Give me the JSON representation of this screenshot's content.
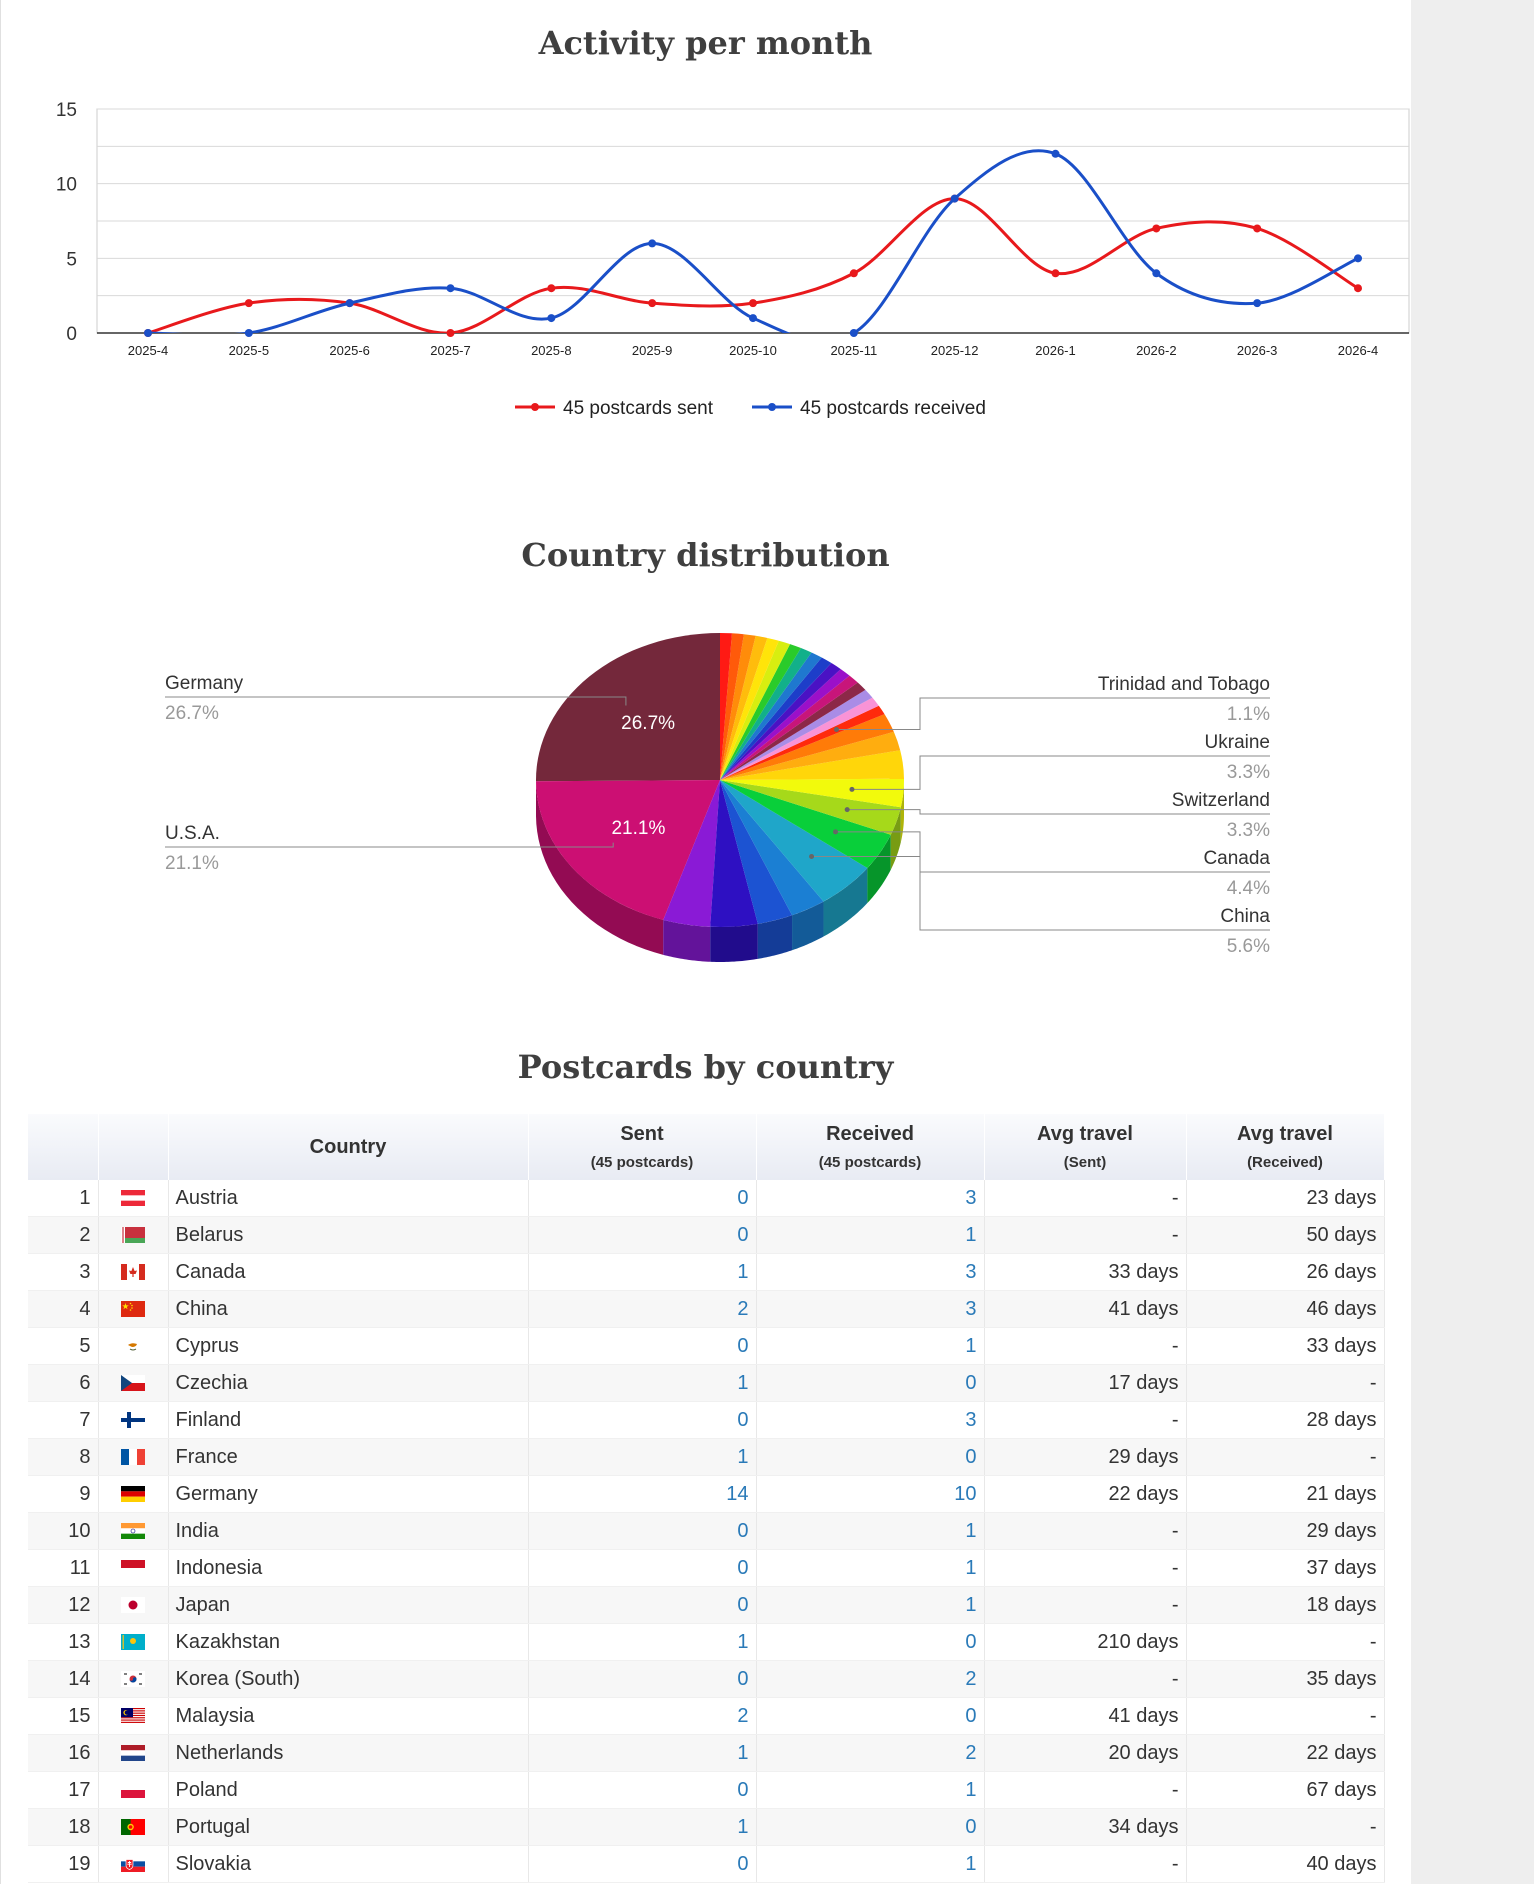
{
  "colors": {
    "sent": "#e8191c",
    "received": "#1a4fc8",
    "link": "#2a7ab8"
  },
  "sections": {
    "activity_title": "Activity per month",
    "country_title": "Country distribution",
    "table_title": "Postcards by country"
  },
  "chart_data": [
    {
      "type": "line",
      "title": "Activity per month",
      "x": [
        "2025-4",
        "2025-5",
        "2025-6",
        "2025-7",
        "2025-8",
        "2025-9",
        "2025-10",
        "2025-11",
        "2025-12",
        "2026-1",
        "2026-2",
        "2026-3",
        "2026-4"
      ],
      "ylim": [
        0,
        15
      ],
      "yticks": [
        0,
        5,
        10,
        15
      ],
      "grid": true,
      "legend": "bottom",
      "series": [
        {
          "name": "45 postcards sent",
          "color": "#e8191c",
          "values": [
            0,
            2,
            2,
            0,
            3,
            2,
            2,
            4,
            9,
            4,
            7,
            7,
            3
          ]
        },
        {
          "name": "45 postcards received",
          "color": "#1a4fc8",
          "values": [
            0,
            0,
            2,
            3,
            1,
            6,
            1,
            0,
            9,
            12,
            4,
            2,
            5
          ]
        }
      ]
    },
    {
      "type": "pie",
      "title": "Country distribution",
      "slices": [
        {
          "label": "Germany",
          "value": 26.7,
          "color": "#74283b",
          "inner_label": "26.7%",
          "callout": "left",
          "pct_text": "26.7%"
        },
        {
          "label": "U.S.A.",
          "value": 21.1,
          "color": "#cc0f73",
          "inner_label": "21.1%",
          "callout": "left",
          "pct_text": "21.1%"
        },
        {
          "label": "",
          "value": 4.4,
          "color": "#8a1ad6"
        },
        {
          "label": "",
          "value": 4.4,
          "color": "#2e10c2"
        },
        {
          "label": "",
          "value": 3.3,
          "color": "#1c53d2"
        },
        {
          "label": "",
          "value": 3.3,
          "color": "#1b7fd3"
        },
        {
          "label": "China",
          "value": 5.6,
          "color": "#1fa6c9",
          "callout": "right",
          "pct_text": "5.6%"
        },
        {
          "label": "Canada",
          "value": 4.4,
          "color": "#09cf3a",
          "callout": "right",
          "pct_text": "4.4%"
        },
        {
          "label": "Switzerland",
          "value": 3.3,
          "color": "#a6d91a",
          "callout": "right",
          "pct_text": "3.3%"
        },
        {
          "label": "Ukraine",
          "value": 3.3,
          "color": "#f2fa0c",
          "callout": "right",
          "pct_text": "3.3%"
        },
        {
          "label": "",
          "value": 3.3,
          "color": "#ffd60a"
        },
        {
          "label": "",
          "value": 2.2,
          "color": "#ffad0f"
        },
        {
          "label": "",
          "value": 2.2,
          "color": "#ff7b08"
        },
        {
          "label": "Trinidad and Tobago",
          "value": 1.1,
          "color": "#ff2a0c",
          "callout": "right",
          "pct_text": "1.1%"
        },
        {
          "label": "",
          "value": 1.1,
          "color": "#f993d6"
        },
        {
          "label": "",
          "value": 1.1,
          "color": "#a98ce6"
        },
        {
          "label": "",
          "value": 1.1,
          "color": "#8c2848"
        },
        {
          "label": "",
          "value": 1.1,
          "color": "#c8157a"
        },
        {
          "label": "",
          "value": 1.1,
          "color": "#9b10c9"
        },
        {
          "label": "",
          "value": 1.1,
          "color": "#4a12c4"
        },
        {
          "label": "",
          "value": 1.1,
          "color": "#1d3ec9"
        },
        {
          "label": "",
          "value": 1.1,
          "color": "#1f78cf"
        },
        {
          "label": "",
          "value": 1.1,
          "color": "#12b08a"
        },
        {
          "label": "",
          "value": 1.1,
          "color": "#2acb2a"
        },
        {
          "label": "",
          "value": 1.1,
          "color": "#d8ee10"
        },
        {
          "label": "",
          "value": 1.1,
          "color": "#ffe40a"
        },
        {
          "label": "",
          "value": 1.1,
          "color": "#ffbc0c"
        },
        {
          "label": "",
          "value": 1.1,
          "color": "#ff8c0a"
        },
        {
          "label": "",
          "value": 1.1,
          "color": "#ff5a0a"
        },
        {
          "label": "",
          "value": 1.1,
          "color": "#ff1a14"
        }
      ]
    },
    {
      "type": "table",
      "title": "Postcards by country",
      "columns": {
        "country": "Country",
        "sent": "Sent",
        "sent_sub": "(45 postcards)",
        "received": "Received",
        "received_sub": "(45 postcards)",
        "avg_sent": "Avg travel",
        "avg_sent_sub": "(Sent)",
        "avg_received": "Avg travel",
        "avg_received_sub": "(Received)"
      },
      "rows": [
        {
          "n": "1",
          "country": "Austria",
          "flag": "austria",
          "sent": "0",
          "received": "3",
          "avg_sent": "-",
          "avg_received": "23 days"
        },
        {
          "n": "2",
          "country": "Belarus",
          "flag": "belarus",
          "sent": "0",
          "received": "1",
          "avg_sent": "-",
          "avg_received": "50 days"
        },
        {
          "n": "3",
          "country": "Canada",
          "flag": "canada",
          "sent": "1",
          "received": "3",
          "avg_sent": "33 days",
          "avg_received": "26 days"
        },
        {
          "n": "4",
          "country": "China",
          "flag": "china",
          "sent": "2",
          "received": "3",
          "avg_sent": "41 days",
          "avg_received": "46 days"
        },
        {
          "n": "5",
          "country": "Cyprus",
          "flag": "cyprus",
          "sent": "0",
          "received": "1",
          "avg_sent": "-",
          "avg_received": "33 days"
        },
        {
          "n": "6",
          "country": "Czechia",
          "flag": "czechia",
          "sent": "1",
          "received": "0",
          "avg_sent": "17 days",
          "avg_received": "-"
        },
        {
          "n": "7",
          "country": "Finland",
          "flag": "finland",
          "sent": "0",
          "received": "3",
          "avg_sent": "-",
          "avg_received": "28 days"
        },
        {
          "n": "8",
          "country": "France",
          "flag": "france",
          "sent": "1",
          "received": "0",
          "avg_sent": "29 days",
          "avg_received": "-"
        },
        {
          "n": "9",
          "country": "Germany",
          "flag": "germany",
          "sent": "14",
          "received": "10",
          "avg_sent": "22 days",
          "avg_received": "21 days"
        },
        {
          "n": "10",
          "country": "India",
          "flag": "india",
          "sent": "0",
          "received": "1",
          "avg_sent": "-",
          "avg_received": "29 days"
        },
        {
          "n": "11",
          "country": "Indonesia",
          "flag": "indonesia",
          "sent": "0",
          "received": "1",
          "avg_sent": "-",
          "avg_received": "37 days"
        },
        {
          "n": "12",
          "country": "Japan",
          "flag": "japan",
          "sent": "0",
          "received": "1",
          "avg_sent": "-",
          "avg_received": "18 days"
        },
        {
          "n": "13",
          "country": "Kazakhstan",
          "flag": "kazakhstan",
          "sent": "1",
          "received": "0",
          "avg_sent": "210 days",
          "avg_received": "-"
        },
        {
          "n": "14",
          "country": "Korea (South)",
          "flag": "korea",
          "sent": "0",
          "received": "2",
          "avg_sent": "-",
          "avg_received": "35 days"
        },
        {
          "n": "15",
          "country": "Malaysia",
          "flag": "malaysia",
          "sent": "2",
          "received": "0",
          "avg_sent": "41 days",
          "avg_received": "-"
        },
        {
          "n": "16",
          "country": "Netherlands",
          "flag": "netherlands",
          "sent": "1",
          "received": "2",
          "avg_sent": "20 days",
          "avg_received": "22 days"
        },
        {
          "n": "17",
          "country": "Poland",
          "flag": "poland",
          "sent": "0",
          "received": "1",
          "avg_sent": "-",
          "avg_received": "67 days"
        },
        {
          "n": "18",
          "country": "Portugal",
          "flag": "portugal",
          "sent": "1",
          "received": "0",
          "avg_sent": "34 days",
          "avg_received": "-"
        },
        {
          "n": "19",
          "country": "Slovakia",
          "flag": "slovakia",
          "sent": "0",
          "received": "1",
          "avg_sent": "-",
          "avg_received": "40 days"
        }
      ]
    }
  ]
}
